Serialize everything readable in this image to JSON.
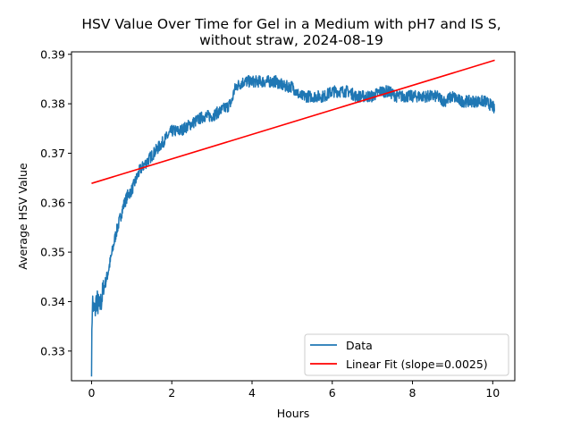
{
  "chart_data": {
    "type": "line",
    "title_line1": "HSV Value Over Time for Gel in a Medium with pH7 and IS S,",
    "title_line2": "without straw, 2024-08-19",
    "xlabel": "Hours",
    "ylabel": "Average HSV Value",
    "xlim": [
      -0.5,
      10.55
    ],
    "ylim": [
      0.324,
      0.3905
    ],
    "x_ticks": [
      0,
      2,
      4,
      6,
      8,
      10
    ],
    "y_ticks": [
      0.33,
      0.34,
      0.35,
      0.36,
      0.37,
      0.38,
      0.39
    ],
    "grid": false,
    "legend_position": "lower-right",
    "series": [
      {
        "name": "Data",
        "color": "#1f77b4",
        "x": [
          0.0,
          0.02,
          0.05,
          0.08,
          0.12,
          0.2,
          0.3,
          0.4,
          0.5,
          0.6,
          0.7,
          0.8,
          0.9,
          1.0,
          1.1,
          1.2,
          1.3,
          1.4,
          1.5,
          1.6,
          1.7,
          1.8,
          1.9,
          2.0,
          2.2,
          2.4,
          2.6,
          2.8,
          3.0,
          3.2,
          3.4,
          3.5,
          3.55,
          3.6,
          3.8,
          4.0,
          4.2,
          4.4,
          4.6,
          4.8,
          5.0,
          5.1,
          5.2,
          5.4,
          5.6,
          5.8,
          6.0,
          6.2,
          6.4,
          6.6,
          6.8,
          7.0,
          7.2,
          7.4,
          7.6,
          7.8,
          8.0,
          8.2,
          8.4,
          8.6,
          8.8,
          9.0,
          9.2,
          9.4,
          9.6,
          9.8,
          10.0,
          10.05
        ],
        "y": [
          0.3275,
          0.3405,
          0.3385,
          0.3375,
          0.3405,
          0.3385,
          0.3425,
          0.3455,
          0.3495,
          0.3535,
          0.3565,
          0.3595,
          0.3615,
          0.3625,
          0.3645,
          0.3665,
          0.3675,
          0.3685,
          0.3695,
          0.3705,
          0.3715,
          0.3725,
          0.3735,
          0.3745,
          0.3745,
          0.3755,
          0.3765,
          0.3775,
          0.3775,
          0.3785,
          0.3795,
          0.3805,
          0.3825,
          0.3835,
          0.3845,
          0.3845,
          0.3845,
          0.3845,
          0.3845,
          0.3835,
          0.3835,
          0.3825,
          0.3815,
          0.3815,
          0.3815,
          0.3815,
          0.3825,
          0.3825,
          0.3825,
          0.3815,
          0.3815,
          0.3815,
          0.3825,
          0.3825,
          0.3815,
          0.3815,
          0.3815,
          0.3815,
          0.3815,
          0.3815,
          0.3805,
          0.3815,
          0.3805,
          0.3805,
          0.3805,
          0.3805,
          0.3795,
          0.3785
        ],
        "noise_amplitude": 0.0012
      },
      {
        "name": "Linear Fit (slope=0.0025)",
        "color": "#ff0000",
        "x": [
          0.0,
          10.05
        ],
        "y": [
          0.3639,
          0.3888
        ]
      }
    ]
  }
}
